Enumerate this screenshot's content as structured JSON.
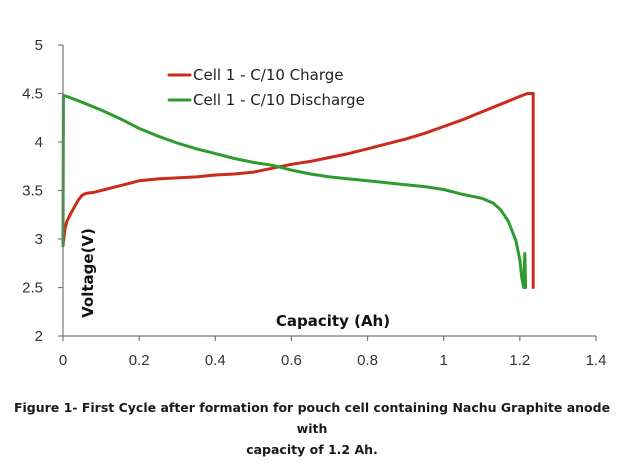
{
  "chart_data": {
    "type": "line",
    "xlabel": "Capacity (Ah)",
    "ylabel": "Voltage(V)",
    "xlim": [
      0,
      1.4
    ],
    "ylim": [
      2,
      5
    ],
    "xticks": [
      0,
      0.2,
      0.4,
      0.6,
      0.8,
      1,
      1.2,
      1.4
    ],
    "xtick_labels": [
      "0",
      "0.2",
      "0.4",
      "0.6",
      "0.8",
      "1",
      "1.2",
      "1.4"
    ],
    "yticks": [
      2,
      2.5,
      3,
      3.5,
      4,
      4.5,
      5
    ],
    "ytick_labels": [
      "2",
      "2.5",
      "3",
      "3.5",
      "4",
      "4.5",
      "5"
    ],
    "grid": false,
    "legend_position": "top-center",
    "series": [
      {
        "name": "Cell 1 - C/10 Charge",
        "color": "#cc2a1a",
        "x": [
          0,
          0.005,
          0.01,
          0.02,
          0.03,
          0.04,
          0.05,
          0.06,
          0.08,
          0.1,
          0.15,
          0.2,
          0.25,
          0.3,
          0.35,
          0.4,
          0.45,
          0.5,
          0.55,
          0.6,
          0.65,
          0.7,
          0.75,
          0.8,
          0.85,
          0.9,
          0.95,
          1.0,
          1.05,
          1.1,
          1.15,
          1.2,
          1.22,
          1.235,
          1.235
        ],
        "y": [
          2.93,
          3.1,
          3.18,
          3.26,
          3.33,
          3.4,
          3.45,
          3.47,
          3.48,
          3.5,
          3.55,
          3.6,
          3.62,
          3.63,
          3.64,
          3.66,
          3.67,
          3.69,
          3.73,
          3.77,
          3.8,
          3.84,
          3.88,
          3.93,
          3.98,
          4.03,
          4.09,
          4.16,
          4.23,
          4.31,
          4.39,
          4.47,
          4.5,
          4.5,
          2.5
        ]
      },
      {
        "name": "Cell 1 - C/10 Discharge",
        "color": "#2e9b2e",
        "x": [
          0,
          0.001,
          0.01,
          0.05,
          0.1,
          0.15,
          0.2,
          0.25,
          0.3,
          0.35,
          0.4,
          0.45,
          0.5,
          0.55,
          0.6,
          0.65,
          0.7,
          0.75,
          0.8,
          0.85,
          0.9,
          0.95,
          1.0,
          1.05,
          1.1,
          1.13,
          1.15,
          1.17,
          1.19,
          1.2,
          1.205,
          1.21,
          1.213,
          1.215
        ],
        "y": [
          2.93,
          4.48,
          4.47,
          4.41,
          4.33,
          4.24,
          4.14,
          4.06,
          3.99,
          3.93,
          3.88,
          3.83,
          3.79,
          3.76,
          3.71,
          3.67,
          3.64,
          3.62,
          3.6,
          3.58,
          3.56,
          3.54,
          3.51,
          3.46,
          3.42,
          3.37,
          3.3,
          3.18,
          2.98,
          2.78,
          2.6,
          2.5,
          2.85,
          2.5
        ]
      }
    ]
  },
  "caption_line1": "Figure 1- First Cycle after formation for pouch cell containing Nachu Graphite anode with",
  "caption_line2": "capacity of 1.2 Ah."
}
